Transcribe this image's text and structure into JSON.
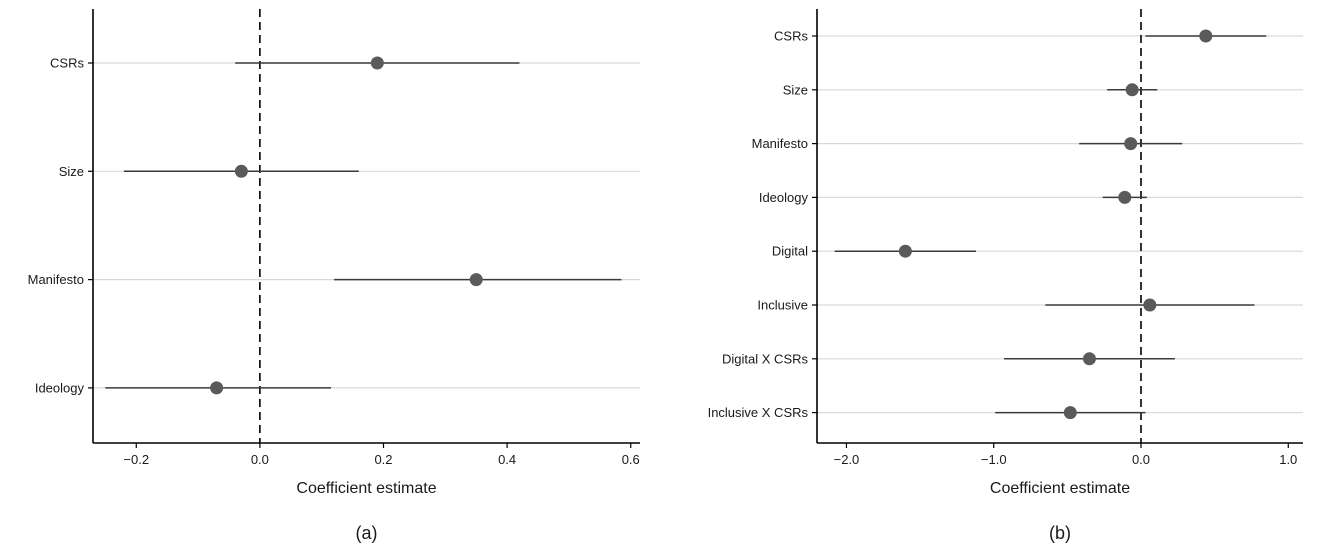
{
  "chart_data": [
    {
      "type": "scatter",
      "subtype": "coefficient-plot",
      "panel_label": "(a)",
      "xlabel": "Coefficient estimate",
      "ylabel": "",
      "xlim": [
        -0.27,
        0.615
      ],
      "x_ticks": [
        -0.2,
        0.0,
        0.2,
        0.4,
        0.6
      ],
      "x_tick_labels": [
        "−0.2",
        "0.0",
        "0.2",
        "0.4",
        "0.6"
      ],
      "reference_line": 0.0,
      "grid": "horizontal",
      "categories": [
        "CSRs",
        "Size",
        "Manifesto",
        "Ideology"
      ],
      "estimates": [
        0.19,
        -0.03,
        0.35,
        -0.07
      ],
      "ci_low": [
        -0.04,
        -0.22,
        0.12,
        -0.25
      ],
      "ci_high": [
        0.42,
        0.16,
        0.585,
        0.115
      ]
    },
    {
      "type": "scatter",
      "subtype": "coefficient-plot",
      "panel_label": "(b)",
      "xlabel": "Coefficient estimate",
      "ylabel": "",
      "xlim": [
        -2.2,
        1.1
      ],
      "x_ticks": [
        -2.0,
        -1.0,
        0.0,
        1.0
      ],
      "x_tick_labels": [
        "−2.0",
        "−1.0",
        "0.0",
        "1.0"
      ],
      "reference_line": 0.0,
      "grid": "horizontal",
      "categories": [
        "CSRs",
        "Size",
        "Manifesto",
        "Ideology",
        "Digital",
        "Inclusive",
        "Digital X CSRs",
        "Inclusive X CSRs"
      ],
      "estimates": [
        0.44,
        -0.06,
        -0.07,
        -0.11,
        -1.6,
        0.06,
        -0.35,
        -0.48
      ],
      "ci_low": [
        0.03,
        -0.23,
        -0.42,
        -0.26,
        -2.08,
        -0.65,
        -0.93,
        -0.99
      ],
      "ci_high": [
        0.85,
        0.11,
        0.28,
        0.04,
        -1.12,
        0.77,
        0.23,
        0.03
      ]
    }
  ],
  "colors": {
    "point": "#5a5a5a",
    "interval": "#3a3a3a",
    "grid": "#d9d9d9",
    "axis": "#000000",
    "reference": "#000000"
  }
}
